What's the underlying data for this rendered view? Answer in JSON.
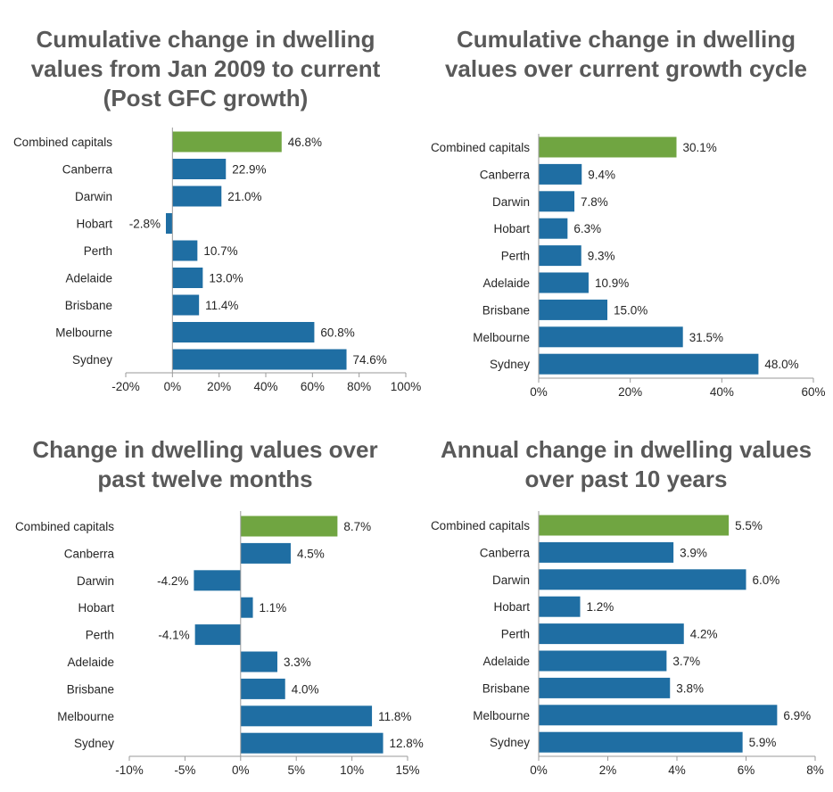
{
  "colors": {
    "bar": "#1f6ea3",
    "highlight": "#70a541",
    "axis": "#9a9a9a",
    "text": "#262626",
    "title": "#595959"
  },
  "chart_data": [
    {
      "type": "bar",
      "orientation": "horizontal",
      "title": "Cumulative change in dwelling values from Jan 2009 to current (Post GFC growth)",
      "categories": [
        "Combined capitals",
        "Canberra",
        "Darwin",
        "Hobart",
        "Perth",
        "Adelaide",
        "Brisbane",
        "Melbourne",
        "Sydney"
      ],
      "values": [
        46.8,
        22.9,
        21.0,
        -2.8,
        10.7,
        13.0,
        11.4,
        60.8,
        74.6
      ],
      "value_labels": [
        "46.8%",
        "22.9%",
        "21.0%",
        "-2.8%",
        "10.7%",
        "13.0%",
        "11.4%",
        "60.8%",
        "74.6%"
      ],
      "xlim": [
        -20,
        100
      ],
      "xticks": [
        -20,
        0,
        20,
        40,
        60,
        80,
        100
      ],
      "xtick_labels": [
        "-20%",
        "0%",
        "20%",
        "40%",
        "60%",
        "80%",
        "100%"
      ],
      "highlight_category": "Combined capitals",
      "grid": false
    },
    {
      "type": "bar",
      "orientation": "horizontal",
      "title": "Cumulative change in dwelling values over current growth cycle",
      "categories": [
        "Combined capitals",
        "Canberra",
        "Darwin",
        "Hobart",
        "Perth",
        "Adelaide",
        "Brisbane",
        "Melbourne",
        "Sydney"
      ],
      "values": [
        30.1,
        9.4,
        7.8,
        6.3,
        9.3,
        10.9,
        15.0,
        31.5,
        48.0
      ],
      "value_labels": [
        "30.1%",
        "9.4%",
        "7.8%",
        "6.3%",
        "9.3%",
        "10.9%",
        "15.0%",
        "31.5%",
        "48.0%"
      ],
      "xlim": [
        0,
        60
      ],
      "xticks": [
        0,
        20,
        40,
        60
      ],
      "xtick_labels": [
        "0%",
        "20%",
        "40%",
        "60%"
      ],
      "highlight_category": "Combined capitals",
      "grid": false
    },
    {
      "type": "bar",
      "orientation": "horizontal",
      "title": "Change in dwelling values over past twelve months",
      "categories": [
        "Combined capitals",
        "Canberra",
        "Darwin",
        "Hobart",
        "Perth",
        "Adelaide",
        "Brisbane",
        "Melbourne",
        "Sydney"
      ],
      "values": [
        8.7,
        4.5,
        -4.2,
        1.1,
        -4.1,
        3.3,
        4.0,
        11.8,
        12.8
      ],
      "value_labels": [
        "8.7%",
        "4.5%",
        "-4.2%",
        "1.1%",
        "-4.1%",
        "3.3%",
        "4.0%",
        "11.8%",
        "12.8%"
      ],
      "xlim": [
        -10,
        15
      ],
      "xticks": [
        -10,
        -5,
        0,
        5,
        10,
        15
      ],
      "xtick_labels": [
        "-10%",
        "-5%",
        "0%",
        "5%",
        "10%",
        "15%"
      ],
      "highlight_category": "Combined capitals",
      "grid": false
    },
    {
      "type": "bar",
      "orientation": "horizontal",
      "title": "Annual change in dwelling values over past 10 years",
      "categories": [
        "Combined capitals",
        "Canberra",
        "Darwin",
        "Hobart",
        "Perth",
        "Adelaide",
        "Brisbane",
        "Melbourne",
        "Sydney"
      ],
      "values": [
        5.5,
        3.9,
        6.0,
        1.2,
        4.2,
        3.7,
        3.8,
        6.9,
        5.9
      ],
      "value_labels": [
        "5.5%",
        "3.9%",
        "6.0%",
        "1.2%",
        "4.2%",
        "3.7%",
        "3.8%",
        "6.9%",
        "5.9%"
      ],
      "xlim": [
        0,
        8
      ],
      "xticks": [
        0,
        2,
        4,
        6,
        8
      ],
      "xtick_labels": [
        "0%",
        "2%",
        "4%",
        "6%",
        "8%"
      ],
      "highlight_category": "Combined capitals",
      "grid": false
    }
  ]
}
